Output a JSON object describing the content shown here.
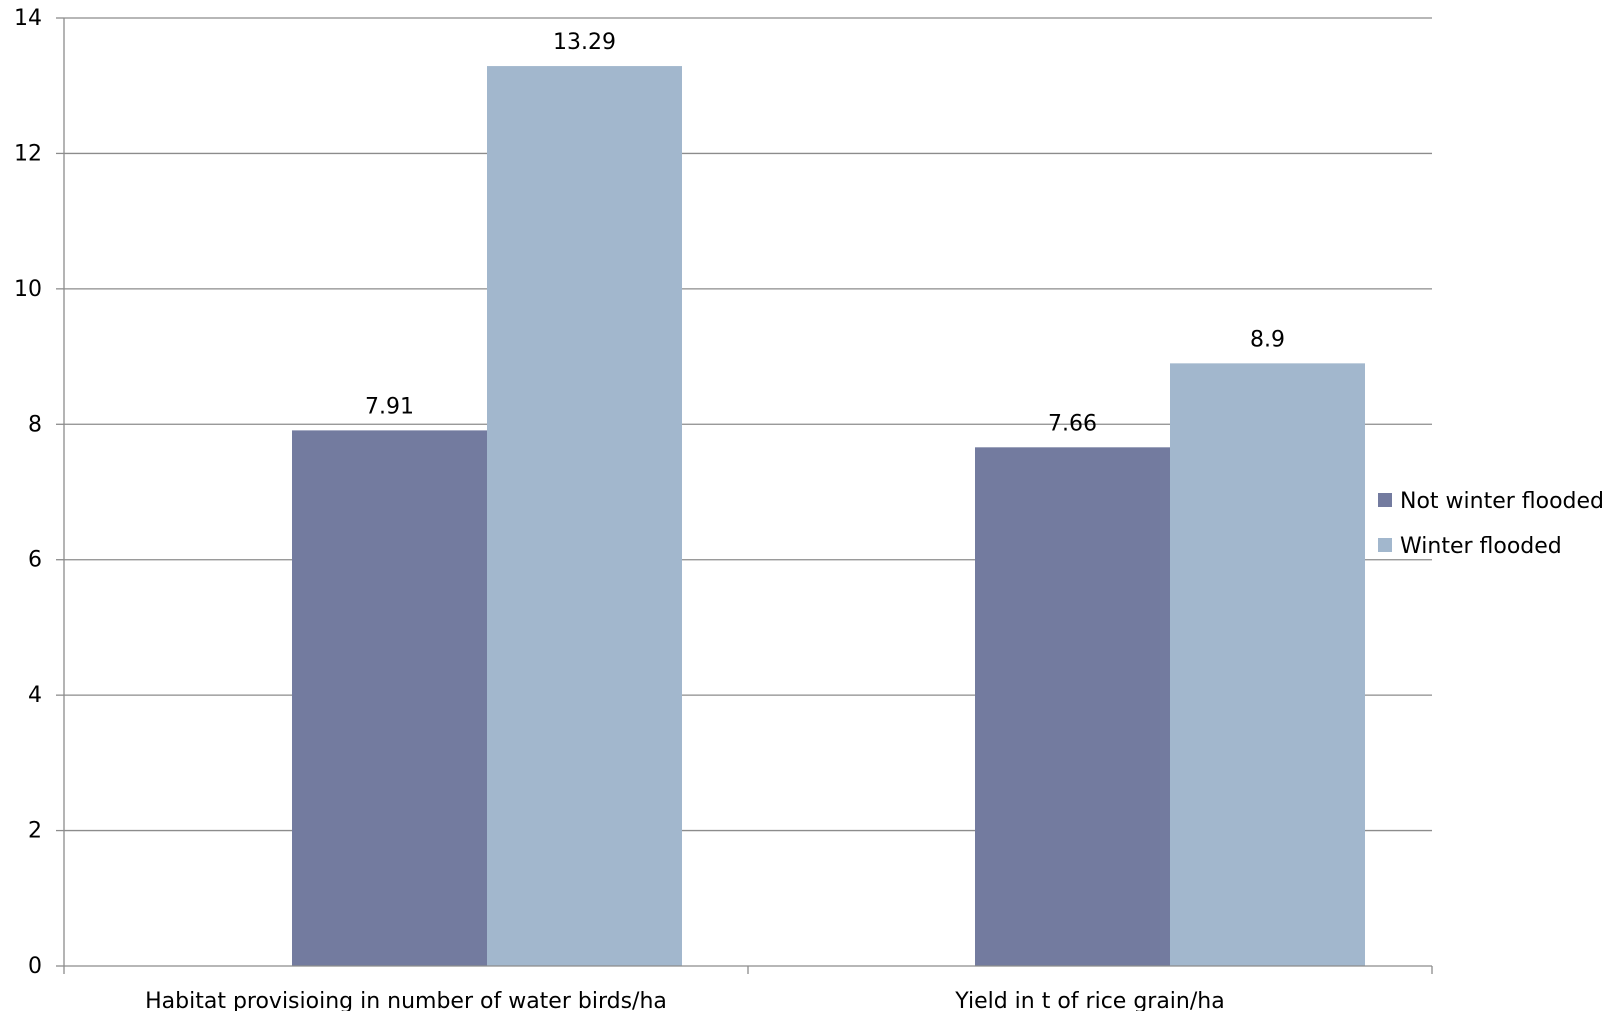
{
  "chart_data": {
    "type": "bar",
    "categories": [
      "Habitat provisioing in number of water birds/ha",
      "Yield in t of rice grain/ha"
    ],
    "series": [
      {
        "name": "Not winter flooded",
        "values": [
          7.91,
          7.66
        ],
        "labels": [
          "7.91",
          "7.66"
        ],
        "color": "#737b9f"
      },
      {
        "name": "Winter flooded",
        "values": [
          13.29,
          8.9
        ],
        "labels": [
          "13.29",
          "8.9"
        ],
        "color": "#a2b7cd"
      }
    ],
    "ylim": [
      0,
      14
    ],
    "yticks": [
      0,
      2,
      4,
      6,
      8,
      10,
      12,
      14
    ],
    "grid": true,
    "legend_position": "right",
    "title": "",
    "xlabel": "",
    "ylabel": ""
  },
  "colors": {
    "gridline": "#8c8c8c",
    "axis": "#8c8c8c"
  }
}
